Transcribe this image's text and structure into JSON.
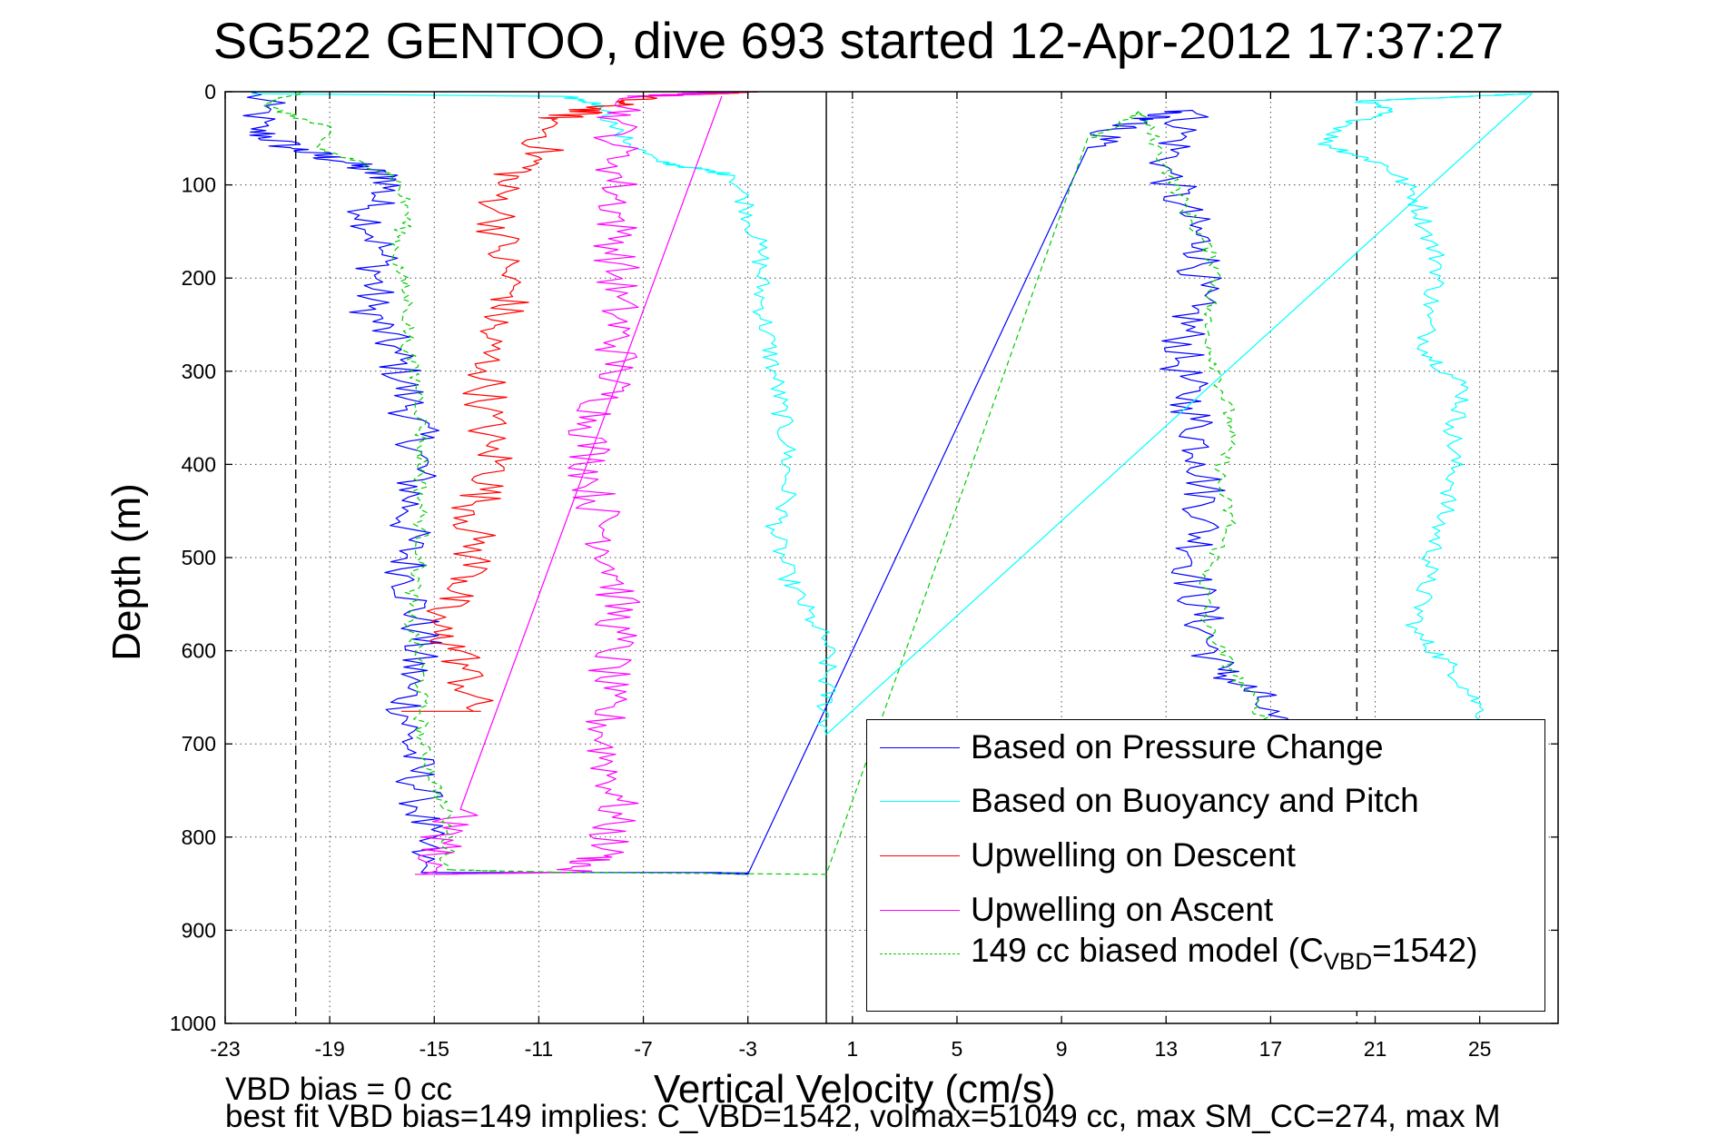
{
  "title": "SG522 GENTOO, dive 693 started 12-Apr-2012 17:37:27",
  "footer": {
    "line1": "VBD bias = 0 cc",
    "line2": "best fit VBD bias=149 implies: C_VBD=1542, volmax=51049 cc, max SM_CC=274, max M"
  },
  "legend": {
    "position": "lower-right",
    "items": [
      {
        "label": "Based on Pressure Change",
        "color": "#0000ff",
        "style": "solid"
      },
      {
        "label": "Based on Buoyancy and Pitch",
        "color": "#00ffff",
        "style": "solid"
      },
      {
        "label": "Upwelling on Descent",
        "color": "#ff0000",
        "style": "solid"
      },
      {
        "label": "Upwelling on Ascent",
        "color": "#ff00ff",
        "style": "solid"
      },
      {
        "label_prefix": "149 cc biased model (C",
        "label_sub": "VBD",
        "label_suffix": "=1542)",
        "color": "#00cc00",
        "style": "dashed"
      }
    ]
  },
  "chart_data": {
    "type": "line",
    "title": "SG522 GENTOO, dive 693 started 12-Apr-2012 17:37:27",
    "xlabel": "Vertical Velocity (cm/s)",
    "ylabel": "Depth (m)",
    "xlim": [
      -23,
      28
    ],
    "ylim": [
      1000,
      0
    ],
    "y_reversed": true,
    "grid": true,
    "x_ticks": [
      -23,
      -19,
      -15,
      -11,
      -7,
      -3,
      1,
      5,
      9,
      13,
      17,
      21,
      25
    ],
    "x_tick_labels": [
      "-23",
      "-19",
      "-15",
      "-11",
      "-7",
      "-3",
      "1",
      "5",
      "9",
      "13",
      "17",
      "21",
      "25"
    ],
    "y_ticks": [
      0,
      100,
      200,
      300,
      400,
      500,
      600,
      700,
      800,
      900,
      1000
    ],
    "y_tick_labels": [
      "0",
      "100",
      "200",
      "300",
      "400",
      "500",
      "600",
      "700",
      "800",
      "900",
      "1000"
    ],
    "reference_lines": [
      {
        "x": 0,
        "style": "solid",
        "color": "#000000"
      },
      {
        "x": -20.3,
        "style": "dashed",
        "color": "#000000"
      },
      {
        "x": 20.3,
        "style": "dashed",
        "color": "#000000"
      }
    ],
    "series": [
      {
        "name": "Based on Pressure Change",
        "color": "#0000ff",
        "style": "solid",
        "noise": 0.9,
        "points": [
          [
            -22,
            0
          ],
          [
            -21.5,
            15
          ],
          [
            -22,
            40
          ],
          [
            -20.5,
            60
          ],
          [
            -18.5,
            75
          ],
          [
            -16.5,
            95
          ],
          [
            -17.5,
            125
          ],
          [
            -17,
            175
          ],
          [
            -17.5,
            230
          ],
          [
            -16.5,
            280
          ],
          [
            -16,
            330
          ],
          [
            -15.5,
            390
          ],
          [
            -16,
            450
          ],
          [
            -16,
            520
          ],
          [
            -15.5,
            580
          ],
          [
            -16,
            640
          ],
          [
            -16,
            690
          ],
          [
            -15.5,
            760
          ],
          [
            -15.5,
            820
          ],
          [
            -15.5,
            838
          ],
          [
            -4,
            838
          ],
          [
            -3,
            840
          ],
          [
            10,
            60
          ],
          [
            11,
            40
          ],
          [
            12,
            30
          ],
          [
            14,
            20
          ],
          [
            13,
            80
          ],
          [
            13.5,
            120
          ],
          [
            14.5,
            170
          ],
          [
            14,
            230
          ],
          [
            13.5,
            290
          ],
          [
            14,
            340
          ],
          [
            14.5,
            400
          ],
          [
            14.5,
            460
          ],
          [
            14,
            520
          ],
          [
            14.5,
            580
          ],
          [
            15,
            620
          ],
          [
            16.5,
            650
          ],
          [
            17,
            680
          ]
        ]
      },
      {
        "name": "Based on Buoyancy and Pitch",
        "color": "#00ffff",
        "style": "solid",
        "noise": 0.4,
        "points": [
          [
            -22,
            2
          ],
          [
            -10,
            5
          ],
          [
            -8.5,
            15
          ],
          [
            -8,
            45
          ],
          [
            -6.5,
            75
          ],
          [
            -3.5,
            90
          ],
          [
            -3,
            125
          ],
          [
            -2.5,
            175
          ],
          [
            -2.5,
            225
          ],
          [
            -2,
            300
          ],
          [
            -1.5,
            380
          ],
          [
            -1.5,
            440
          ],
          [
            -2,
            470
          ],
          [
            -1.5,
            520
          ],
          [
            -0.5,
            570
          ],
          [
            0,
            590
          ],
          [
            0,
            690
          ],
          [
            27,
            2
          ],
          [
            20.5,
            10
          ],
          [
            21.5,
            20
          ],
          [
            20,
            35
          ],
          [
            19,
            55
          ],
          [
            21.5,
            80
          ],
          [
            22.5,
            110
          ],
          [
            23,
            150
          ],
          [
            23.5,
            190
          ],
          [
            23,
            240
          ],
          [
            23,
            280
          ],
          [
            24.5,
            320
          ],
          [
            24,
            360
          ],
          [
            24,
            420
          ],
          [
            23.5,
            460
          ],
          [
            23,
            520
          ],
          [
            22.5,
            580
          ],
          [
            24,
            620
          ],
          [
            25,
            660
          ],
          [
            25.5,
            690
          ]
        ]
      },
      {
        "name": "Upwelling on Descent",
        "color": "#ff0000",
        "style": "solid",
        "noise": 0.9,
        "points": [
          [
            -3,
            0
          ],
          [
            -7,
            5
          ],
          [
            -10.5,
            30
          ],
          [
            -11,
            70
          ],
          [
            -12.5,
            100
          ],
          [
            -12.5,
            130
          ],
          [
            -12.5,
            170
          ],
          [
            -12,
            220
          ],
          [
            -13,
            260
          ],
          [
            -13,
            300
          ],
          [
            -13,
            340
          ],
          [
            -13,
            380
          ],
          [
            -12.5,
            400
          ],
          [
            -13.5,
            450
          ],
          [
            -13.5,
            480
          ],
          [
            -13.5,
            520
          ],
          [
            -15,
            560
          ],
          [
            -15,
            580
          ],
          [
            -14,
            600
          ],
          [
            -13.5,
            665
          ],
          [
            -16,
            665
          ]
        ]
      },
      {
        "name": "Upwelling on Ascent",
        "color": "#ff00ff",
        "style": "solid",
        "noise": 0.9,
        "points": [
          [
            -3.5,
            0
          ],
          [
            -7,
            5
          ],
          [
            -8,
            30
          ],
          [
            -8,
            80
          ],
          [
            -8,
            150
          ],
          [
            -8,
            220
          ],
          [
            -8,
            300
          ],
          [
            -9,
            360
          ],
          [
            -9,
            420
          ],
          [
            -8.5,
            470
          ],
          [
            -8,
            520
          ],
          [
            -8,
            580
          ],
          [
            -8.5,
            640
          ],
          [
            -8.5,
            700
          ],
          [
            -8,
            760
          ],
          [
            -8.5,
            820
          ],
          [
            -10,
            838
          ],
          [
            -15.5,
            840
          ],
          [
            -14,
            770
          ],
          [
            -4,
            5
          ]
        ]
      },
      {
        "name": "149 cc biased model (CVBD=1542)",
        "color": "#00cc00",
        "style": "dashed",
        "noise": 0.3,
        "points": [
          [
            -20,
            0
          ],
          [
            -21.5,
            15
          ],
          [
            -19,
            40
          ],
          [
            -19.5,
            60
          ],
          [
            -16.5,
            90
          ],
          [
            -16,
            130
          ],
          [
            -16.5,
            170
          ],
          [
            -16,
            230
          ],
          [
            -16,
            280
          ],
          [
            -15.5,
            330
          ],
          [
            -15.5,
            380
          ],
          [
            -15.5,
            440
          ],
          [
            -15.5,
            500
          ],
          [
            -16,
            560
          ],
          [
            -15.5,
            620
          ],
          [
            -15.5,
            700
          ],
          [
            -14.5,
            780
          ],
          [
            -14.5,
            835
          ],
          [
            -10,
            838
          ],
          [
            0,
            840
          ],
          [
            10,
            50
          ],
          [
            11,
            40
          ],
          [
            12,
            20
          ],
          [
            13,
            80
          ],
          [
            14,
            140
          ],
          [
            15,
            190
          ],
          [
            14.5,
            250
          ],
          [
            15,
            300
          ],
          [
            15.5,
            360
          ],
          [
            15,
            420
          ],
          [
            15.5,
            460
          ],
          [
            14.5,
            520
          ],
          [
            14.5,
            570
          ],
          [
            15.5,
            620
          ],
          [
            16.5,
            660
          ],
          [
            17,
            690
          ]
        ]
      }
    ]
  }
}
